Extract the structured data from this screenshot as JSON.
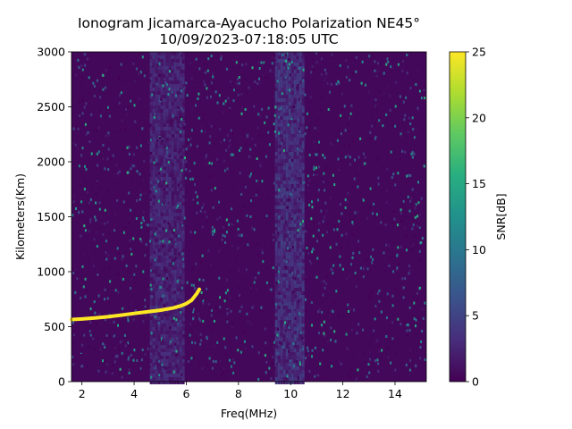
{
  "chart_data": {
    "type": "heatmap",
    "title": "Ionogram Jicamarca-Ayacucho Polarization NE45°",
    "subtitle": "10/09/2023-07:18:05 UTC",
    "xlabel": "Freq(MHz)",
    "ylabel": "Kilometers(Km)",
    "colorbar_label": "SNR[dB]",
    "xlim": [
      1.6,
      15.2
    ],
    "ylim": [
      0,
      3000
    ],
    "clim": [
      0,
      25
    ],
    "x_ticks": [
      2,
      4,
      6,
      8,
      10,
      12,
      14
    ],
    "x_tick_labels": [
      "2",
      "4",
      "6",
      "8",
      "10",
      "12",
      "14"
    ],
    "y_ticks": [
      0,
      500,
      1000,
      1500,
      2000,
      2500,
      3000
    ],
    "y_tick_labels": [
      "0",
      "500",
      "1000",
      "1500",
      "2000",
      "2500",
      "3000"
    ],
    "colorbar_ticks": [
      0,
      5,
      10,
      15,
      20,
      25
    ],
    "colorbar_tick_labels": [
      "0",
      "5",
      "10",
      "15",
      "20",
      "25"
    ],
    "colormap": [
      "#440154",
      "#472d7b",
      "#3b528b",
      "#2c728e",
      "#21918c",
      "#28ae80",
      "#5ec962",
      "#addc30",
      "#fde725"
    ],
    "trace": {
      "name": "",
      "x": [
        1.6,
        2.0,
        2.5,
        3.0,
        3.5,
        4.0,
        4.5,
        5.0,
        5.5,
        5.8,
        6.0,
        6.2,
        6.3,
        6.4,
        6.5
      ],
      "y": [
        565,
        570,
        580,
        590,
        605,
        620,
        635,
        650,
        670,
        690,
        710,
        740,
        770,
        800,
        840
      ],
      "snr": 25
    },
    "noise_bands": [
      {
        "x": [
          4.6,
          5.9
        ],
        "snr": 3
      },
      {
        "x": [
          9.4,
          10.5
        ],
        "snr": 4
      }
    ]
  }
}
